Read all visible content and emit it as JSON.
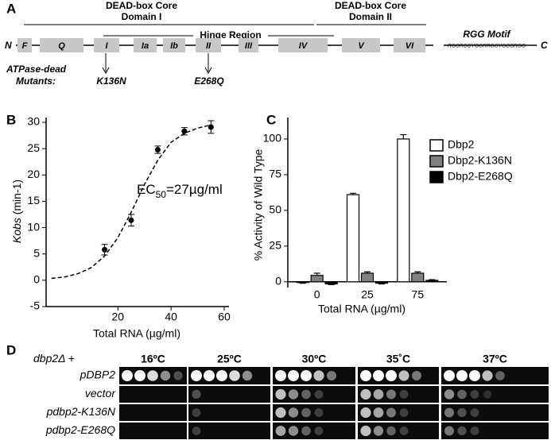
{
  "panel_a": {
    "label": "A",
    "domain_1": [
      "DEAD-box Core",
      "Domain I"
    ],
    "hinge": "Hinge Region",
    "domain_2": [
      "DEAD-box Core",
      "Domain II"
    ],
    "n_term": "N",
    "c_term": "C",
    "motifs": [
      "F",
      "Q",
      "I",
      "Ia",
      "Ib",
      "II",
      "III",
      "IV",
      "V",
      "VI"
    ],
    "rgg_title": "RGG Motif",
    "rgg_sequence": "RGGRGGYGGRRGGYGGGRGG",
    "mutants_label": [
      "ATPase-dead",
      "Mutants:"
    ],
    "mutants": [
      "K136N",
      "E268Q"
    ]
  },
  "chart_data": [
    {
      "type": "scatter",
      "panel": "B",
      "y_label_italic": "Kobs",
      "y_label": "(min-1)",
      "x_label": "Total RNA (µg/ml)",
      "annotation": [
        "EC",
        "50",
        "=27µg/ml"
      ],
      "x": [
        15,
        25,
        35,
        45,
        55
      ],
      "values": [
        5.8,
        11.4,
        24.8,
        28.3,
        29.1
      ],
      "errors": [
        1.0,
        1.1,
        0.7,
        0.7,
        1.2
      ],
      "fit": {
        "x": [
          -5,
          0,
          5,
          10,
          15,
          20,
          25,
          30,
          35,
          40,
          45,
          50,
          55
        ],
        "values": [
          0.35,
          0.62,
          1.25,
          2.4,
          4.6,
          8.1,
          12.9,
          18.2,
          22.8,
          26.2,
          27.9,
          28.9,
          29.5
        ]
      },
      "color": "#000000",
      "xlim": [
        -7,
        60
      ],
      "xticks": [
        20,
        40,
        60
      ],
      "ylim": [
        -5,
        30
      ],
      "yticks": [
        -5,
        0,
        5,
        10,
        15,
        20,
        25,
        30
      ]
    },
    {
      "type": "bar",
      "panel": "C",
      "y_label": "% Activity of Wild Type",
      "x_label": "Total RNA (µg/ml)",
      "categories": [
        "0",
        "25",
        "75"
      ],
      "series": [
        {
          "name": "Dbp2",
          "color": "#ffffff",
          "values": [
            -0.5,
            61,
            100
          ],
          "errors": [
            0.5,
            1,
            3
          ]
        },
        {
          "name": "Dbp2-K136N",
          "color": "#808080",
          "values": [
            4.5,
            6,
            6
          ],
          "errors": [
            1.5,
            1,
            1
          ]
        },
        {
          "name": "Dbp2-E268Q",
          "color": "#000000",
          "values": [
            -1.5,
            -1,
            1
          ],
          "errors": [
            0.5,
            0.5,
            0.5
          ]
        }
      ],
      "ylim": [
        -4,
        115
      ],
      "yticks": [
        0,
        25,
        50,
        75,
        100
      ]
    }
  ],
  "panel_d": {
    "label": "D",
    "genotype": [
      "dbp2Δ",
      "+"
    ],
    "temperatures": [
      "16ºC",
      "25ºC",
      "30ºC",
      "35˚C",
      "37ºC"
    ],
    "strains": [
      "pDBP2",
      "vector",
      "pdbp2-K136N",
      "pdbp2-E268Q"
    ]
  }
}
